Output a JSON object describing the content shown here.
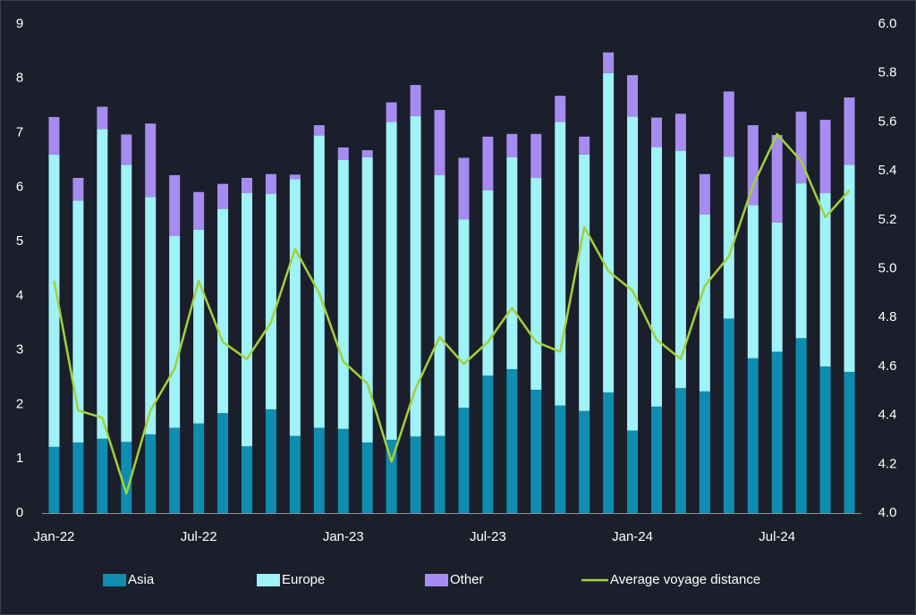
{
  "chart_data": {
    "type": "bar",
    "stacked": true,
    "categories": [
      "Jan-22",
      null,
      null,
      null,
      null,
      null,
      "Jul-22",
      null,
      null,
      null,
      null,
      null,
      "Jan-23",
      null,
      null,
      null,
      null,
      null,
      "Jul-23",
      null,
      null,
      null,
      null,
      null,
      "Jan-24",
      null,
      null,
      null,
      null,
      null,
      "Jul-24",
      null,
      null,
      null
    ],
    "series": [
      {
        "name": "Asia",
        "color": "#0e8db0",
        "values": [
          1.22,
          1.3,
          1.37,
          1.31,
          1.45,
          1.57,
          1.65,
          1.84,
          1.23,
          1.91,
          1.42,
          1.57,
          1.55,
          1.3,
          1.35,
          1.41,
          1.42,
          1.94,
          2.53,
          2.65,
          2.27,
          1.98,
          1.88,
          2.22,
          1.52,
          1.96,
          2.3,
          2.24,
          3.58,
          2.85,
          2.97,
          3.22,
          2.7,
          2.6
        ]
      },
      {
        "name": "Europe",
        "color": "#9ef2f8",
        "values": [
          5.38,
          4.45,
          5.7,
          5.1,
          4.37,
          3.53,
          3.57,
          3.76,
          4.66,
          3.97,
          4.73,
          5.38,
          4.95,
          5.25,
          5.85,
          5.9,
          4.8,
          3.47,
          3.41,
          3.9,
          3.9,
          5.22,
          4.72,
          5.88,
          5.78,
          4.78,
          4.37,
          3.26,
          2.98,
          2.82,
          2.38,
          2.85,
          3.19,
          3.81
        ]
      },
      {
        "name": "Other",
        "color": "#a68cf0",
        "values": [
          0.69,
          0.42,
          0.41,
          0.56,
          1.35,
          1.12,
          0.69,
          0.46,
          0.28,
          0.36,
          0.08,
          0.19,
          0.23,
          0.13,
          0.36,
          0.57,
          1.2,
          1.13,
          0.99,
          0.43,
          0.81,
          0.48,
          0.33,
          0.38,
          0.76,
          0.54,
          0.68,
          0.74,
          1.2,
          1.47,
          1.61,
          1.32,
          1.35,
          1.24
        ]
      },
      {
        "name": "Average voyage distance",
        "color": "#a4d03a",
        "type": "line",
        "axis": "y2",
        "values": [
          4.95,
          4.42,
          4.39,
          4.08,
          4.42,
          4.59,
          4.95,
          4.7,
          4.63,
          4.78,
          5.08,
          4.9,
          4.62,
          4.53,
          4.21,
          4.51,
          4.72,
          4.61,
          4.7,
          4.84,
          4.7,
          4.66,
          5.17,
          4.99,
          4.91,
          4.71,
          4.63,
          4.93,
          5.05,
          5.34,
          5.55,
          5.44,
          5.21,
          5.32
        ]
      }
    ],
    "ylim": [
      0,
      9
    ],
    "yticks": [
      0,
      1,
      2,
      3,
      4,
      5,
      6,
      7,
      8,
      9
    ],
    "y2lim": [
      4.0,
      6.0
    ],
    "y2ticks": [
      {
        "value": 4.0,
        "label": "4.0"
      },
      {
        "value": 4.2,
        "label": "4.2"
      },
      {
        "value": 4.4,
        "label": "4.4"
      },
      {
        "value": 4.6,
        "label": "4.6"
      },
      {
        "value": 4.8,
        "label": "4.8"
      },
      {
        "value": 5.0,
        "label": "5.0"
      },
      {
        "value": 5.2,
        "label": "5.2"
      },
      {
        "value": 5.4,
        "label": "5.4"
      },
      {
        "value": 5.6,
        "label": "5.6"
      },
      {
        "value": 5.8,
        "label": "5.8"
      },
      {
        "value": 6.0,
        "label": "6.0"
      }
    ],
    "grid": false
  }
}
